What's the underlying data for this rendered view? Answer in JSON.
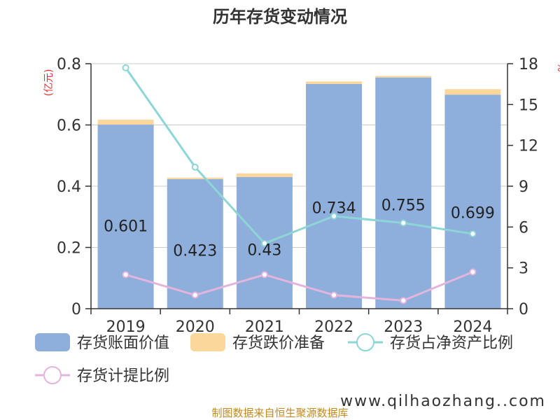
{
  "chart_data": {
    "type": "bar",
    "title": "历年存货变动情况",
    "categories": [
      "2019",
      "2020",
      "2021",
      "2022",
      "2023",
      "2024"
    ],
    "series": [
      {
        "name": "存货账面价值",
        "type": "bar",
        "axis": "left",
        "color": "#8eaedb",
        "values": [
          0.601,
          0.423,
          0.43,
          0.734,
          0.755,
          0.699
        ],
        "labels": [
          "0.601",
          "0.423",
          "0.43",
          "0.734",
          "0.755",
          "0.699"
        ]
      },
      {
        "name": "存货跌价准备",
        "type": "bar",
        "axis": "left",
        "color": "#fcd79c",
        "values": [
          0.016,
          0.005,
          0.012,
          0.008,
          0.005,
          0.018
        ]
      },
      {
        "name": "存货占净资产比例",
        "type": "line",
        "axis": "right",
        "color": "#8dd5d6",
        "values": [
          17.7,
          10.4,
          4.8,
          6.8,
          6.3,
          5.5
        ]
      },
      {
        "name": "存货计提比例",
        "type": "line",
        "axis": "right",
        "color": "#e4b5dc",
        "values": [
          2.5,
          1.0,
          2.5,
          1.0,
          0.6,
          2.7
        ]
      }
    ],
    "ylim_left": [
      0,
      0.8
    ],
    "yticks_left": [
      "0",
      "0.2",
      "0.4",
      "0.6",
      "0.8"
    ],
    "ylabel_left": "(亿元)",
    "ylim_right": [
      0,
      18
    ],
    "yticks_right": [
      "0",
      "3",
      "6",
      "9",
      "12",
      "15",
      "18"
    ],
    "ylabel_right": "%",
    "grid": true,
    "legend_position": "bottom"
  },
  "footer": "制图数据来自恒生聚源数据库",
  "watermark": "www.qilhaozhang..com"
}
